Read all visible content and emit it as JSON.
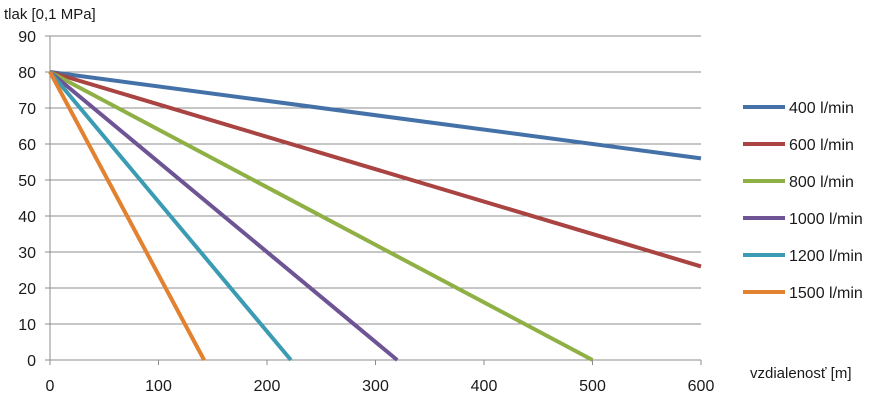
{
  "chart_data": {
    "type": "line",
    "xlabel": "vzdialenosť [m]",
    "ylabel": "tlak [0,1 MPa]",
    "xlim": [
      0,
      600
    ],
    "ylim": [
      0,
      90
    ],
    "x_ticks": [
      "0",
      "100",
      "200",
      "300",
      "400",
      "500",
      "600"
    ],
    "y_ticks": [
      "0",
      "10",
      "20",
      "30",
      "40",
      "50",
      "60",
      "70",
      "80",
      "90"
    ],
    "grid": "horizontal",
    "legend_position": "right",
    "series": [
      {
        "name": "400 l/min",
        "color": "#4472a8",
        "x": [
          0,
          600
        ],
        "y": [
          80,
          56
        ]
      },
      {
        "name": "600 l/min",
        "color": "#a94442",
        "x": [
          0,
          600
        ],
        "y": [
          80,
          26
        ]
      },
      {
        "name": "800 l/min",
        "color": "#8fb045",
        "x": [
          0,
          500
        ],
        "y": [
          80,
          0
        ]
      },
      {
        "name": "1000 l/min",
        "color": "#6e5494",
        "x": [
          0,
          320
        ],
        "y": [
          80,
          0
        ]
      },
      {
        "name": "1200 l/min",
        "color": "#3b9bb2",
        "x": [
          0,
          222
        ],
        "y": [
          80,
          0
        ]
      },
      {
        "name": "1500 l/min",
        "color": "#e2812f",
        "x": [
          0,
          142
        ],
        "y": [
          80,
          0
        ]
      }
    ]
  }
}
